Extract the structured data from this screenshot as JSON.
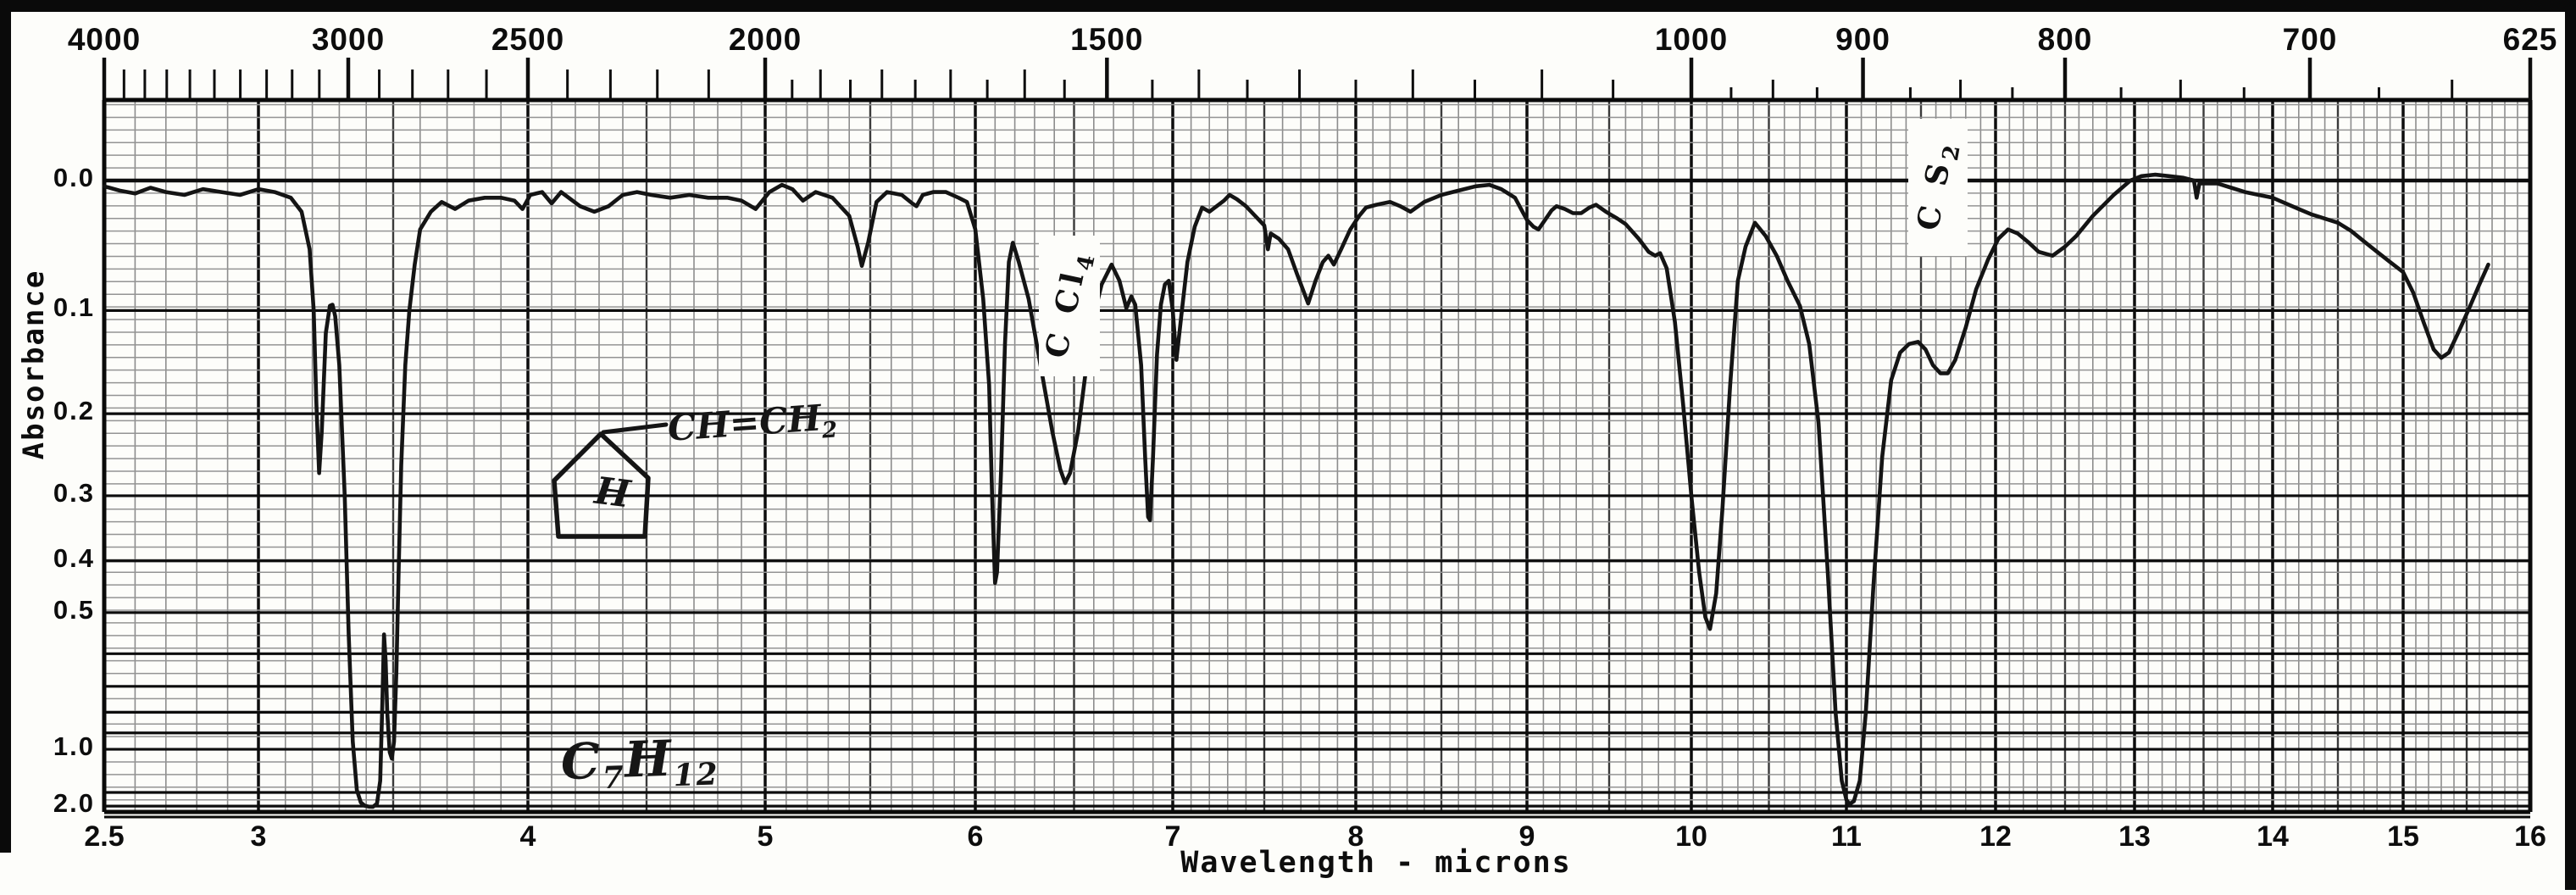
{
  "axes": {
    "top": {
      "labels": [
        {
          "text": "4000",
          "wn": 4000
        },
        {
          "text": "3000",
          "wn": 3000
        },
        {
          "text": "2500",
          "wn": 2500
        },
        {
          "text": "2000",
          "wn": 2000
        },
        {
          "text": "1500",
          "wn": 1500
        },
        {
          "text": "1000",
          "wn": 1000
        },
        {
          "text": "900",
          "wn": 900
        },
        {
          "text": "800",
          "wn": 800
        },
        {
          "text": "700",
          "wn": 700
        },
        {
          "text": "625",
          "wn": 625
        }
      ],
      "tick_ranges": [
        {
          "from": 4000,
          "to": 2100,
          "step": 100
        },
        {
          "from": 2000,
          "to": 1050,
          "step": 50
        },
        {
          "from": 1000,
          "to": 625,
          "step": 25
        }
      ]
    },
    "bottom": {
      "title": "Wavelength - microns",
      "labels": [
        "2.5",
        "3",
        "4",
        "5",
        "6",
        "7",
        "8",
        "9",
        "10",
        "11",
        "12",
        "13",
        "14",
        "15",
        "16"
      ],
      "values": [
        2.5,
        3,
        4,
        5,
        6,
        7,
        8,
        9,
        10,
        11,
        12,
        13,
        14,
        15,
        16
      ]
    },
    "left": {
      "title": "Absorbance",
      "labels": [
        {
          "text": "0.0",
          "a": 0.0
        },
        {
          "text": "0.1",
          "a": 0.1
        },
        {
          "text": "0.2",
          "a": 0.2
        },
        {
          "text": "0.3",
          "a": 0.3
        },
        {
          "text": "0.4",
          "a": 0.4
        },
        {
          "text": "0.5",
          "a": 0.5
        },
        {
          "text": "1.0",
          "a": 1.0
        },
        {
          "text": "2.0",
          "a": 2.0
        }
      ]
    }
  },
  "annotations": {
    "solvent_ccl4": {
      "text": "C Cl",
      "sub": "4"
    },
    "solvent_cs2": {
      "text": "C S",
      "sub": "2"
    },
    "structure": {
      "substituent": "CH=CH",
      "substituent_sub": "2",
      "ring_hydrogen": "H"
    },
    "formula": {
      "c": "C",
      "c_sub": "7",
      "h": "H",
      "h_sub": "12"
    }
  },
  "chart_data": {
    "type": "line",
    "title": "",
    "xlabel": "Wavelength - microns",
    "ylabel": "Absorbance",
    "x_range": [
      2.5,
      16
    ],
    "y_tick_values": [
      0.0,
      0.1,
      0.2,
      0.3,
      0.4,
      0.5,
      1.0,
      2.0
    ],
    "y_scale": "absorbance ticks on a transmittance-linear grid, 0.0 at top, 2.0 near bottom",
    "secondary_x_axis_labels_cm-1": [
      4000,
      3000,
      2500,
      2000,
      1500,
      1000,
      900,
      800,
      700,
      625
    ],
    "grid": "dense graph paper, 0.1 micron minor divisions",
    "legend": "none",
    "annotations_on_plot": [
      "C Cl4 solvent band label near 6.45 microns",
      "C S2 solvent band label near 11.6 microns",
      "hand-drawn cyclopentane ring with H and CH=CH2 substituent",
      "handwritten formula C7H12"
    ],
    "series": [
      {
        "name": "IR spectrum trace",
        "points": [
          [
            2.5,
            0.004
          ],
          [
            2.55,
            0.007
          ],
          [
            2.6,
            0.009
          ],
          [
            2.65,
            0.005
          ],
          [
            2.7,
            0.008
          ],
          [
            2.76,
            0.01
          ],
          [
            2.82,
            0.006
          ],
          [
            2.88,
            0.008
          ],
          [
            2.94,
            0.01
          ],
          [
            3.0,
            0.006
          ],
          [
            3.06,
            0.008
          ],
          [
            3.12,
            0.012
          ],
          [
            3.16,
            0.022
          ],
          [
            3.19,
            0.05
          ],
          [
            3.205,
            0.1
          ],
          [
            3.215,
            0.19
          ],
          [
            3.225,
            0.27
          ],
          [
            3.235,
            0.22
          ],
          [
            3.25,
            0.12
          ],
          [
            3.265,
            0.096
          ],
          [
            3.275,
            0.095
          ],
          [
            3.285,
            0.105
          ],
          [
            3.3,
            0.15
          ],
          [
            3.32,
            0.3
          ],
          [
            3.335,
            0.55
          ],
          [
            3.35,
            0.95
          ],
          [
            3.365,
            1.45
          ],
          [
            3.38,
            1.8
          ],
          [
            3.395,
            1.98
          ],
          [
            3.41,
            2.04
          ],
          [
            3.425,
            2.05
          ],
          [
            3.44,
            1.85
          ],
          [
            3.452,
            1.3
          ],
          [
            3.46,
            0.75
          ],
          [
            3.466,
            0.55
          ],
          [
            3.472,
            0.62
          ],
          [
            3.478,
            0.8
          ],
          [
            3.487,
            1.02
          ],
          [
            3.495,
            1.07
          ],
          [
            3.503,
            0.95
          ],
          [
            3.512,
            0.65
          ],
          [
            3.52,
            0.42
          ],
          [
            3.53,
            0.26
          ],
          [
            3.545,
            0.15
          ],
          [
            3.56,
            0.1
          ],
          [
            3.58,
            0.062
          ],
          [
            3.6,
            0.035
          ],
          [
            3.64,
            0.022
          ],
          [
            3.68,
            0.015
          ],
          [
            3.73,
            0.02
          ],
          [
            3.78,
            0.014
          ],
          [
            3.84,
            0.012
          ],
          [
            3.9,
            0.012
          ],
          [
            3.95,
            0.014
          ],
          [
            3.98,
            0.02
          ],
          [
            4.01,
            0.01
          ],
          [
            4.06,
            0.008
          ],
          [
            4.1,
            0.016
          ],
          [
            4.14,
            0.008
          ],
          [
            4.18,
            0.013
          ],
          [
            4.22,
            0.018
          ],
          [
            4.28,
            0.022
          ],
          [
            4.34,
            0.018
          ],
          [
            4.4,
            0.01
          ],
          [
            4.46,
            0.008
          ],
          [
            4.52,
            0.01
          ],
          [
            4.6,
            0.012
          ],
          [
            4.68,
            0.01
          ],
          [
            4.76,
            0.012
          ],
          [
            4.84,
            0.012
          ],
          [
            4.9,
            0.014
          ],
          [
            4.96,
            0.02
          ],
          [
            5.02,
            0.008
          ],
          [
            5.08,
            0.003
          ],
          [
            5.13,
            0.006
          ],
          [
            5.18,
            0.014
          ],
          [
            5.24,
            0.008
          ],
          [
            5.32,
            0.012
          ],
          [
            5.4,
            0.025
          ],
          [
            5.44,
            0.048
          ],
          [
            5.46,
            0.063
          ],
          [
            5.49,
            0.045
          ],
          [
            5.53,
            0.015
          ],
          [
            5.58,
            0.008
          ],
          [
            5.65,
            0.01
          ],
          [
            5.7,
            0.016
          ],
          [
            5.72,
            0.018
          ],
          [
            5.75,
            0.01
          ],
          [
            5.8,
            0.008
          ],
          [
            5.86,
            0.008
          ],
          [
            5.92,
            0.012
          ],
          [
            5.96,
            0.015
          ],
          [
            6.0,
            0.035
          ],
          [
            6.04,
            0.09
          ],
          [
            6.07,
            0.17
          ],
          [
            6.085,
            0.3
          ],
          [
            6.1,
            0.44
          ],
          [
            6.11,
            0.42
          ],
          [
            6.13,
            0.27
          ],
          [
            6.15,
            0.13
          ],
          [
            6.17,
            0.06
          ],
          [
            6.19,
            0.045
          ],
          [
            6.22,
            0.06
          ],
          [
            6.27,
            0.09
          ],
          [
            6.33,
            0.15
          ],
          [
            6.39,
            0.22
          ],
          [
            6.43,
            0.265
          ],
          [
            6.455,
            0.283
          ],
          [
            6.48,
            0.27
          ],
          [
            6.52,
            0.22
          ],
          [
            6.56,
            0.155
          ],
          [
            6.6,
            0.105
          ],
          [
            6.64,
            0.078
          ],
          [
            6.69,
            0.062
          ],
          [
            6.73,
            0.075
          ],
          [
            6.765,
            0.098
          ],
          [
            6.79,
            0.088
          ],
          [
            6.81,
            0.095
          ],
          [
            6.84,
            0.15
          ],
          [
            6.86,
            0.25
          ],
          [
            6.875,
            0.33
          ],
          [
            6.885,
            0.335
          ],
          [
            6.9,
            0.25
          ],
          [
            6.92,
            0.14
          ],
          [
            6.94,
            0.095
          ],
          [
            6.96,
            0.078
          ],
          [
            6.98,
            0.075
          ],
          [
            7.0,
            0.1
          ],
          [
            7.02,
            0.145
          ],
          [
            7.05,
            0.1
          ],
          [
            7.08,
            0.06
          ],
          [
            7.12,
            0.033
          ],
          [
            7.16,
            0.019
          ],
          [
            7.2,
            0.022
          ],
          [
            7.24,
            0.018
          ],
          [
            7.28,
            0.014
          ],
          [
            7.31,
            0.01
          ],
          [
            7.35,
            0.013
          ],
          [
            7.4,
            0.018
          ],
          [
            7.45,
            0.025
          ],
          [
            7.5,
            0.032
          ],
          [
            7.52,
            0.05
          ],
          [
            7.535,
            0.038
          ],
          [
            7.58,
            0.042
          ],
          [
            7.63,
            0.05
          ],
          [
            7.68,
            0.07
          ],
          [
            7.74,
            0.094
          ],
          [
            7.78,
            0.075
          ],
          [
            7.82,
            0.06
          ],
          [
            7.85,
            0.055
          ],
          [
            7.88,
            0.062
          ],
          [
            7.92,
            0.05
          ],
          [
            7.97,
            0.035
          ],
          [
            8.02,
            0.025
          ],
          [
            8.06,
            0.019
          ],
          [
            8.12,
            0.017
          ],
          [
            8.2,
            0.015
          ],
          [
            8.26,
            0.018
          ],
          [
            8.32,
            0.022
          ],
          [
            8.4,
            0.015
          ],
          [
            8.5,
            0.01
          ],
          [
            8.6,
            0.007
          ],
          [
            8.7,
            0.004
          ],
          [
            8.78,
            0.003
          ],
          [
            8.85,
            0.006
          ],
          [
            8.93,
            0.012
          ],
          [
            9.0,
            0.028
          ],
          [
            9.04,
            0.033
          ],
          [
            9.07,
            0.035
          ],
          [
            9.11,
            0.028
          ],
          [
            9.15,
            0.021
          ],
          [
            9.18,
            0.018
          ],
          [
            9.23,
            0.02
          ],
          [
            9.28,
            0.023
          ],
          [
            9.33,
            0.023
          ],
          [
            9.38,
            0.019
          ],
          [
            9.42,
            0.017
          ],
          [
            9.48,
            0.022
          ],
          [
            9.55,
            0.027
          ],
          [
            9.6,
            0.031
          ],
          [
            9.68,
            0.042
          ],
          [
            9.74,
            0.052
          ],
          [
            9.78,
            0.055
          ],
          [
            9.81,
            0.053
          ],
          [
            9.85,
            0.065
          ],
          [
            9.9,
            0.11
          ],
          [
            9.95,
            0.19
          ],
          [
            10.0,
            0.3
          ],
          [
            10.05,
            0.42
          ],
          [
            10.09,
            0.51
          ],
          [
            10.12,
            0.537
          ],
          [
            10.16,
            0.46
          ],
          [
            10.2,
            0.32
          ],
          [
            10.25,
            0.17
          ],
          [
            10.3,
            0.075
          ],
          [
            10.35,
            0.048
          ],
          [
            10.41,
            0.03
          ],
          [
            10.48,
            0.04
          ],
          [
            10.55,
            0.055
          ],
          [
            10.62,
            0.075
          ],
          [
            10.7,
            0.096
          ],
          [
            10.76,
            0.13
          ],
          [
            10.82,
            0.21
          ],
          [
            10.88,
            0.42
          ],
          [
            10.93,
            0.8
          ],
          [
            10.97,
            1.3
          ],
          [
            11.0,
            1.7
          ],
          [
            11.02,
            1.88
          ],
          [
            11.05,
            1.75
          ],
          [
            11.09,
            1.3
          ],
          [
            11.13,
            0.8
          ],
          [
            11.18,
            0.45
          ],
          [
            11.24,
            0.25
          ],
          [
            11.3,
            0.165
          ],
          [
            11.36,
            0.138
          ],
          [
            11.42,
            0.13
          ],
          [
            11.48,
            0.128
          ],
          [
            11.53,
            0.135
          ],
          [
            11.58,
            0.15
          ],
          [
            11.63,
            0.158
          ],
          [
            11.68,
            0.158
          ],
          [
            11.73,
            0.145
          ],
          [
            11.8,
            0.115
          ],
          [
            11.87,
            0.082
          ],
          [
            11.95,
            0.058
          ],
          [
            12.02,
            0.042
          ],
          [
            12.09,
            0.035
          ],
          [
            12.16,
            0.038
          ],
          [
            12.24,
            0.045
          ],
          [
            12.31,
            0.052
          ],
          [
            12.41,
            0.055
          ],
          [
            12.5,
            0.048
          ],
          [
            12.58,
            0.04
          ],
          [
            12.7,
            0.025
          ],
          [
            12.85,
            0.01
          ],
          [
            12.97,
            0.0
          ],
          [
            13.05,
            -0.003
          ],
          [
            13.15,
            -0.004
          ],
          [
            13.25,
            -0.003
          ],
          [
            13.35,
            -0.002
          ],
          [
            13.43,
            0.0
          ],
          [
            13.45,
            0.012
          ],
          [
            13.47,
            0.002
          ],
          [
            13.6,
            0.002
          ],
          [
            13.7,
            0.005
          ],
          [
            13.8,
            0.008
          ],
          [
            13.9,
            0.01
          ],
          [
            14.0,
            0.012
          ],
          [
            14.1,
            0.016
          ],
          [
            14.2,
            0.02
          ],
          [
            14.3,
            0.024
          ],
          [
            14.4,
            0.027
          ],
          [
            14.5,
            0.03
          ],
          [
            14.6,
            0.036
          ],
          [
            14.7,
            0.044
          ],
          [
            14.8,
            0.052
          ],
          [
            14.9,
            0.06
          ],
          [
            15.0,
            0.068
          ],
          [
            15.08,
            0.085
          ],
          [
            15.16,
            0.11
          ],
          [
            15.24,
            0.135
          ],
          [
            15.3,
            0.143
          ],
          [
            15.36,
            0.138
          ],
          [
            15.44,
            0.118
          ],
          [
            15.52,
            0.098
          ],
          [
            15.6,
            0.078
          ],
          [
            15.67,
            0.062
          ]
        ]
      }
    ]
  }
}
